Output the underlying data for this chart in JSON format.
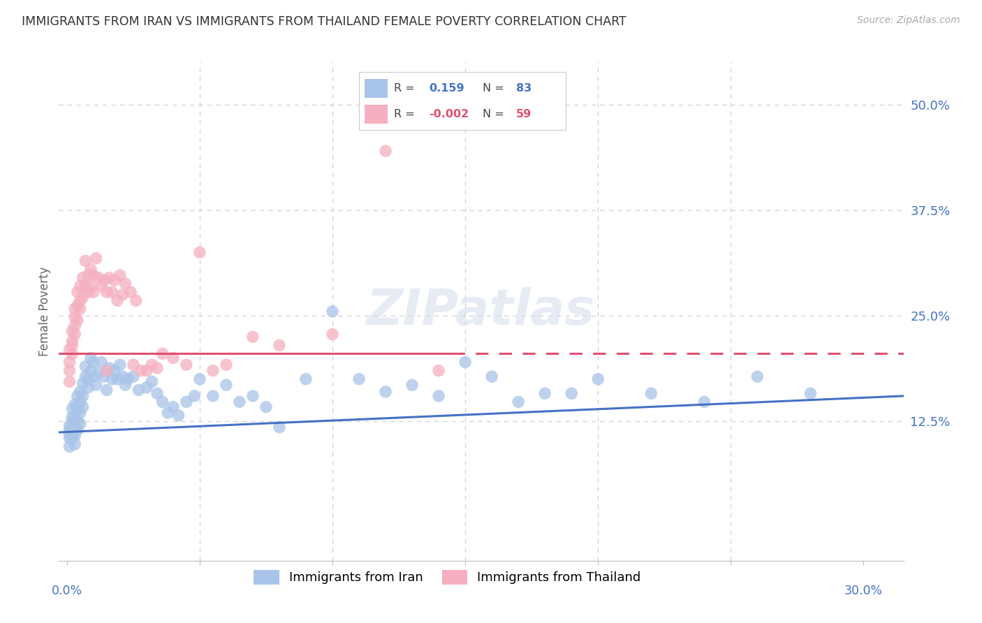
{
  "title": "IMMIGRANTS FROM IRAN VS IMMIGRANTS FROM THAILAND FEMALE POVERTY CORRELATION CHART",
  "source": "Source: ZipAtlas.com",
  "ylabel": "Female Poverty",
  "yticks": [
    "12.5%",
    "25.0%",
    "37.5%",
    "50.0%"
  ],
  "ytick_vals": [
    0.125,
    0.25,
    0.375,
    0.5
  ],
  "ymin": -0.04,
  "ymax": 0.55,
  "xmin": -0.003,
  "xmax": 0.315,
  "iran_R": 0.159,
  "iran_N": 83,
  "thailand_R": -0.002,
  "thailand_N": 59,
  "iran_color": "#a8c4e8",
  "thailand_color": "#f5afc0",
  "iran_line_color": "#4472c4",
  "thailand_line_color": "#e05070",
  "legend_label_iran": "Immigrants from Iran",
  "legend_label_thailand": "Immigrants from Thailand",
  "grid_color": "#d0d0d0",
  "axis_color": "#4472c4",
  "iran_x": [
    0.001,
    0.001,
    0.001,
    0.001,
    0.001,
    0.002,
    0.002,
    0.002,
    0.002,
    0.002,
    0.002,
    0.003,
    0.003,
    0.003,
    0.003,
    0.003,
    0.004,
    0.004,
    0.004,
    0.004,
    0.004,
    0.005,
    0.005,
    0.005,
    0.005,
    0.006,
    0.006,
    0.006,
    0.007,
    0.007,
    0.008,
    0.008,
    0.009,
    0.009,
    0.01,
    0.01,
    0.011,
    0.012,
    0.013,
    0.014,
    0.015,
    0.016,
    0.017,
    0.018,
    0.019,
    0.02,
    0.021,
    0.022,
    0.023,
    0.025,
    0.027,
    0.03,
    0.032,
    0.034,
    0.036,
    0.038,
    0.04,
    0.042,
    0.045,
    0.048,
    0.05,
    0.055,
    0.06,
    0.065,
    0.07,
    0.075,
    0.08,
    0.09,
    0.1,
    0.11,
    0.12,
    0.14,
    0.15,
    0.16,
    0.18,
    0.2,
    0.22,
    0.24,
    0.26,
    0.28,
    0.19,
    0.17,
    0.13
  ],
  "iran_y": [
    0.115,
    0.11,
    0.105,
    0.12,
    0.095,
    0.13,
    0.115,
    0.108,
    0.125,
    0.14,
    0.105,
    0.145,
    0.13,
    0.118,
    0.108,
    0.098,
    0.155,
    0.138,
    0.125,
    0.115,
    0.142,
    0.16,
    0.148,
    0.135,
    0.122,
    0.17,
    0.155,
    0.142,
    0.19,
    0.178,
    0.175,
    0.165,
    0.2,
    0.185,
    0.195,
    0.178,
    0.168,
    0.182,
    0.195,
    0.178,
    0.162,
    0.188,
    0.175,
    0.185,
    0.175,
    0.192,
    0.178,
    0.168,
    0.175,
    0.178,
    0.162,
    0.165,
    0.172,
    0.158,
    0.148,
    0.135,
    0.142,
    0.132,
    0.148,
    0.155,
    0.175,
    0.155,
    0.168,
    0.148,
    0.155,
    0.142,
    0.118,
    0.175,
    0.255,
    0.175,
    0.16,
    0.155,
    0.195,
    0.178,
    0.158,
    0.175,
    0.158,
    0.148,
    0.178,
    0.158,
    0.158,
    0.148,
    0.168
  ],
  "thailand_x": [
    0.001,
    0.001,
    0.001,
    0.001,
    0.002,
    0.002,
    0.002,
    0.002,
    0.003,
    0.003,
    0.003,
    0.003,
    0.004,
    0.004,
    0.004,
    0.005,
    0.005,
    0.005,
    0.006,
    0.006,
    0.007,
    0.007,
    0.008,
    0.008,
    0.009,
    0.009,
    0.01,
    0.01,
    0.011,
    0.012,
    0.013,
    0.014,
    0.015,
    0.016,
    0.017,
    0.018,
    0.019,
    0.02,
    0.021,
    0.022,
    0.024,
    0.026,
    0.028,
    0.03,
    0.032,
    0.034,
    0.036,
    0.04,
    0.045,
    0.05,
    0.055,
    0.06,
    0.07,
    0.08,
    0.1,
    0.12,
    0.14,
    0.025,
    0.015
  ],
  "thailand_y": [
    0.195,
    0.185,
    0.21,
    0.172,
    0.22,
    0.215,
    0.232,
    0.205,
    0.248,
    0.238,
    0.258,
    0.228,
    0.262,
    0.245,
    0.278,
    0.268,
    0.285,
    0.258,
    0.272,
    0.295,
    0.285,
    0.315,
    0.298,
    0.278,
    0.285,
    0.305,
    0.298,
    0.278,
    0.318,
    0.295,
    0.285,
    0.292,
    0.278,
    0.295,
    0.278,
    0.292,
    0.268,
    0.298,
    0.275,
    0.288,
    0.278,
    0.268,
    0.185,
    0.185,
    0.192,
    0.188,
    0.205,
    0.2,
    0.192,
    0.325,
    0.185,
    0.192,
    0.225,
    0.215,
    0.228,
    0.445,
    0.185,
    0.192,
    0.185
  ]
}
